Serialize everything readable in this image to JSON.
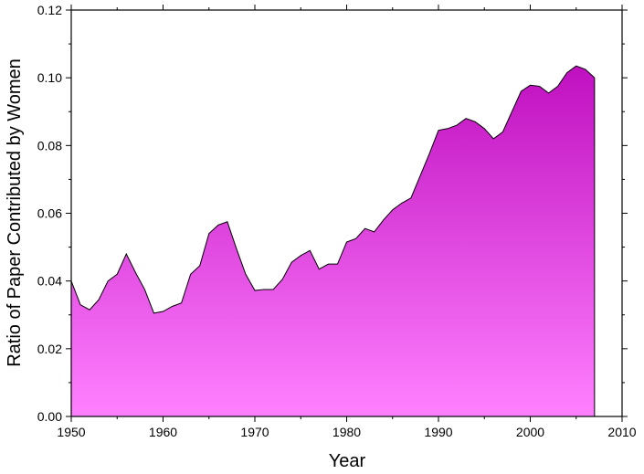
{
  "chart_data": {
    "type": "area",
    "xlabel": "Year",
    "ylabel": "Ratio of Paper Contributed by Women",
    "xlim": [
      1950,
      2010
    ],
    "ylim": [
      0,
      0.12
    ],
    "x_ticks": [
      1950,
      1960,
      1970,
      1980,
      1990,
      2000,
      2010
    ],
    "x_tick_labels": [
      "1950",
      "1960",
      "1970",
      "1980",
      "1990",
      "2000",
      "2010"
    ],
    "y_ticks": [
      0,
      0.02,
      0.04,
      0.06,
      0.08,
      0.1,
      0.12
    ],
    "y_tick_labels": [
      "0.00",
      "0.02",
      "0.04",
      "0.06",
      "0.08",
      "0.10",
      "0.12"
    ],
    "grid": false,
    "fill_gradient": {
      "top": "#c010c0",
      "bottom": "#ff80ff"
    },
    "line_color": "#000000",
    "x": [
      1950,
      1951,
      1952,
      1953,
      1954,
      1955,
      1956,
      1957,
      1958,
      1959,
      1960,
      1961,
      1962,
      1963,
      1964,
      1965,
      1966,
      1967,
      1968,
      1969,
      1970,
      1971,
      1972,
      1973,
      1974,
      1975,
      1976,
      1977,
      1978,
      1979,
      1980,
      1981,
      1982,
      1983,
      1984,
      1985,
      1986,
      1987,
      1988,
      1989,
      1990,
      1991,
      1992,
      1993,
      1994,
      1995,
      1996,
      1997,
      1998,
      1999,
      2000,
      2001,
      2002,
      2003,
      2004,
      2005,
      2006,
      2007
    ],
    "values": [
      0.04,
      0.033,
      0.0315,
      0.0345,
      0.04,
      0.042,
      0.048,
      0.0425,
      0.0375,
      0.0305,
      0.031,
      0.0325,
      0.0335,
      0.042,
      0.0445,
      0.054,
      0.0565,
      0.0575,
      0.0495,
      0.042,
      0.0372,
      0.0375,
      0.0375,
      0.0405,
      0.0455,
      0.0475,
      0.049,
      0.0435,
      0.045,
      0.045,
      0.0515,
      0.0525,
      0.0555,
      0.0545,
      0.058,
      0.061,
      0.063,
      0.0645,
      0.071,
      0.0775,
      0.0845,
      0.085,
      0.086,
      0.088,
      0.087,
      0.085,
      0.082,
      0.084,
      0.09,
      0.096,
      0.0978,
      0.0975,
      0.0955,
      0.0975,
      0.1015,
      0.1035,
      0.1025,
      0.1
    ]
  }
}
